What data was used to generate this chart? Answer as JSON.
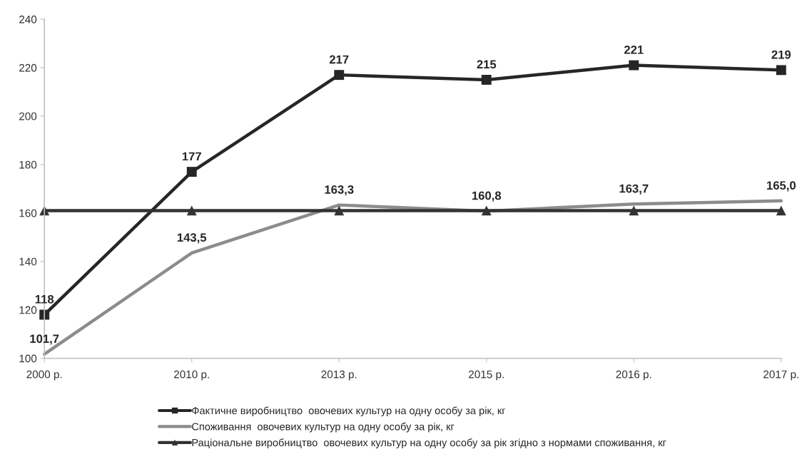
{
  "chart_data": {
    "type": "line",
    "categories": [
      "2000 р.",
      "2010 р.",
      "2013 р.",
      "2015 р.",
      "2016 р.",
      "2017 р."
    ],
    "series": [
      {
        "name": "Фактичне виробництво  овочевих культур на одну особу за рік, кг",
        "color": "#262626",
        "marker": "square",
        "values": [
          118,
          177,
          217,
          215,
          221,
          219
        ],
        "value_labels": [
          "118",
          "177",
          "217",
          "215",
          "221",
          "219"
        ]
      },
      {
        "name": "Споживання  овочевих культур на одну особу за рік, кг",
        "color": "#8c8c8c",
        "marker": "none",
        "values": [
          101.7,
          143.5,
          163.3,
          160.8,
          163.7,
          165.0
        ],
        "value_labels": [
          "101,7",
          "143,5",
          "163,3",
          "160,8",
          "163,7",
          "165,0"
        ]
      },
      {
        "name": "Раціональне виробництво  овочевих культур на одну особу за рік згідно з нормами споживання, кг",
        "color": "#333333",
        "marker": "triangle",
        "values": [
          161,
          161,
          161,
          161,
          161,
          161
        ]
      }
    ],
    "ylim": [
      100,
      240
    ],
    "yticks": [
      100,
      120,
      140,
      160,
      180,
      200,
      220,
      240
    ],
    "grid": false,
    "legend": "bottom",
    "line_style": "solid"
  }
}
